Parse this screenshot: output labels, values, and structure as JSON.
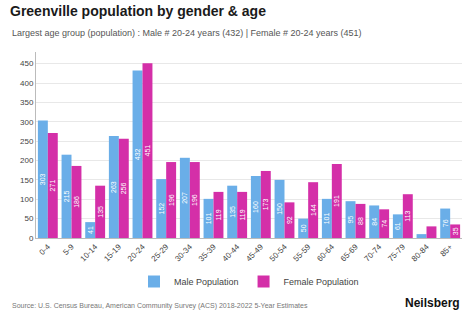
{
  "chart_data": {
    "type": "bar",
    "title": "Greenville population by gender & age",
    "subtitle": "Largest age group (population) : Male # 20-24 years (432) | Female # 20-24 years (451)",
    "categories": [
      "0-4",
      "5-9",
      "10-14",
      "15-19",
      "20-24",
      "25-29",
      "30-34",
      "35-39",
      "40-44",
      "45-49",
      "50-54",
      "55-59",
      "60-64",
      "65-69",
      "70-74",
      "75-79",
      "80-84",
      "85+"
    ],
    "series": [
      {
        "name": "Male Population",
        "color": "#6aaee8",
        "values": [
          303,
          215,
          41,
          263,
          432,
          152,
          207,
          101,
          135,
          160,
          150,
          50,
          101,
          95,
          84,
          61,
          10,
          76
        ],
        "value_labels": [
          "303",
          "215",
          "41",
          "263",
          "432",
          "152",
          "207",
          "101",
          "135",
          "160",
          "150",
          "50",
          "101",
          "95",
          "84",
          "61",
          null,
          "76"
        ]
      },
      {
        "name": "Female Population",
        "color": "#d42fa8",
        "values": [
          271,
          186,
          135,
          256,
          451,
          196,
          196,
          119,
          119,
          173,
          92,
          144,
          191,
          88,
          74,
          113,
          30,
          35
        ],
        "value_labels": [
          "271",
          "186",
          "135",
          "256",
          "451",
          "196",
          "196",
          "119",
          "119",
          "173",
          "92",
          "144",
          "191",
          "88",
          "74",
          "113",
          null,
          "35"
        ]
      }
    ],
    "ylim": [
      0,
      480
    ],
    "yticks": [
      0,
      50,
      100,
      150,
      200,
      250,
      300,
      350,
      400,
      450
    ],
    "grid": true,
    "legend": "bottom",
    "data_labels": true,
    "annotations": [
      "Source: U.S. Census Bureau, American Community Survey (ACS) 2018-2022 5-Year Estimates",
      "Neilsberg"
    ]
  }
}
